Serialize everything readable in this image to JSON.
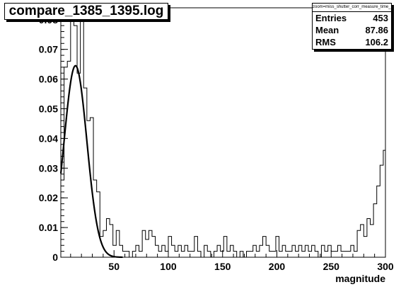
{
  "title": "compare_1385_1395.log",
  "stats": {
    "name": "zoom=miss_shutter_corr_measure_time_1385.pll",
    "rows": [
      {
        "label": "Entries",
        "value": "453"
      },
      {
        "label": "Mean",
        "value": "87.86"
      },
      {
        "label": "RMS",
        "value": "106.2"
      }
    ]
  },
  "chart_data": {
    "type": "bar",
    "title": "compare_1385_1395.log",
    "xlabel": "magnitude",
    "ylabel": "",
    "xlim": [
      1,
      300
    ],
    "ylim": [
      0,
      0.084
    ],
    "x_ticks": [
      50,
      100,
      150,
      200,
      250,
      300
    ],
    "y_ticks": [
      0,
      0.01,
      0.02,
      0.03,
      0.04,
      0.05,
      0.06,
      0.07,
      0.08
    ],
    "x_tick_labels": [
      "50",
      "100",
      "150",
      "200",
      "250",
      "300"
    ],
    "y_tick_labels": [
      "0",
      "0.01",
      "0.02",
      "0.03",
      "0.04",
      "0.05",
      "0.06",
      "0.07",
      "0.08"
    ],
    "bin_width": 3,
    "bins": [
      [
        1,
        0.026
      ],
      [
        4,
        0.064
      ],
      [
        7,
        0.066
      ],
      [
        10,
        0.082
      ],
      [
        13,
        0.078
      ],
      [
        16,
        0.062
      ],
      [
        19,
        0.082
      ],
      [
        22,
        0.057
      ],
      [
        25,
        0.046
      ],
      [
        28,
        0.047
      ],
      [
        31,
        0.026
      ],
      [
        34,
        0.022
      ],
      [
        37,
        0.007
      ],
      [
        40,
        0.009
      ],
      [
        43,
        0.013
      ],
      [
        46,
        0.011
      ],
      [
        49,
        0.004
      ],
      [
        52,
        0.009
      ],
      [
        55,
        0.004
      ],
      [
        58,
        0.002
      ],
      [
        61,
        0.002
      ],
      [
        64,
        0.0
      ],
      [
        67,
        0.002
      ],
      [
        70,
        0.004
      ],
      [
        73,
        0.002
      ],
      [
        76,
        0.009
      ],
      [
        79,
        0.006
      ],
      [
        82,
        0.009
      ],
      [
        85,
        0.007
      ],
      [
        88,
        0.004
      ],
      [
        91,
        0.002
      ],
      [
        94,
        0.004
      ],
      [
        97,
        0.002
      ],
      [
        100,
        0.007
      ],
      [
        103,
        0.004
      ],
      [
        106,
        0.002
      ],
      [
        109,
        0.004
      ],
      [
        112,
        0.002
      ],
      [
        115,
        0.004
      ],
      [
        118,
        0.002
      ],
      [
        121,
        0.002
      ],
      [
        124,
        0.007
      ],
      [
        127,
        0.002
      ],
      [
        130,
        0.0
      ],
      [
        133,
        0.004
      ],
      [
        136,
        0.002
      ],
      [
        139,
        0.0
      ],
      [
        142,
        0.002
      ],
      [
        145,
        0.004
      ],
      [
        148,
        0.002
      ],
      [
        151,
        0.007
      ],
      [
        154,
        0.002
      ],
      [
        157,
        0.004
      ],
      [
        160,
        0.002
      ],
      [
        163,
        0.0
      ],
      [
        166,
        0.002
      ],
      [
        169,
        0.0
      ],
      [
        172,
        0.002
      ],
      [
        175,
        0.002
      ],
      [
        178,
        0.004
      ],
      [
        181,
        0.002
      ],
      [
        184,
        0.004
      ],
      [
        187,
        0.007
      ],
      [
        190,
        0.004
      ],
      [
        193,
        0.002
      ],
      [
        196,
        0.002
      ],
      [
        199,
        0.007
      ],
      [
        202,
        0.002
      ],
      [
        205,
        0.004
      ],
      [
        208,
        0.002
      ],
      [
        211,
        0.002
      ],
      [
        214,
        0.004
      ],
      [
        217,
        0.002
      ],
      [
        220,
        0.004
      ],
      [
        223,
        0.002
      ],
      [
        226,
        0.004
      ],
      [
        229,
        0.002
      ],
      [
        232,
        0.004
      ],
      [
        235,
        0.002
      ],
      [
        238,
        0.0
      ],
      [
        241,
        0.004
      ],
      [
        244,
        0.002
      ],
      [
        247,
        0.004
      ],
      [
        250,
        0.002
      ],
      [
        253,
        0.002
      ],
      [
        256,
        0.004
      ],
      [
        259,
        0.002
      ],
      [
        262,
        0.002
      ],
      [
        265,
        0.002
      ],
      [
        268,
        0.004
      ],
      [
        271,
        0.002
      ],
      [
        274,
        0.009
      ],
      [
        277,
        0.011
      ],
      [
        280,
        0.007
      ],
      [
        283,
        0.013
      ],
      [
        286,
        0.011
      ],
      [
        289,
        0.018
      ],
      [
        292,
        0.024
      ],
      [
        295,
        0.031
      ],
      [
        298,
        0.036
      ]
    ],
    "fit": {
      "type": "gaussian",
      "amplitude": 0.0645,
      "mean": 14.5,
      "sigma": 10.5,
      "x_range": [
        1,
        58
      ]
    }
  }
}
